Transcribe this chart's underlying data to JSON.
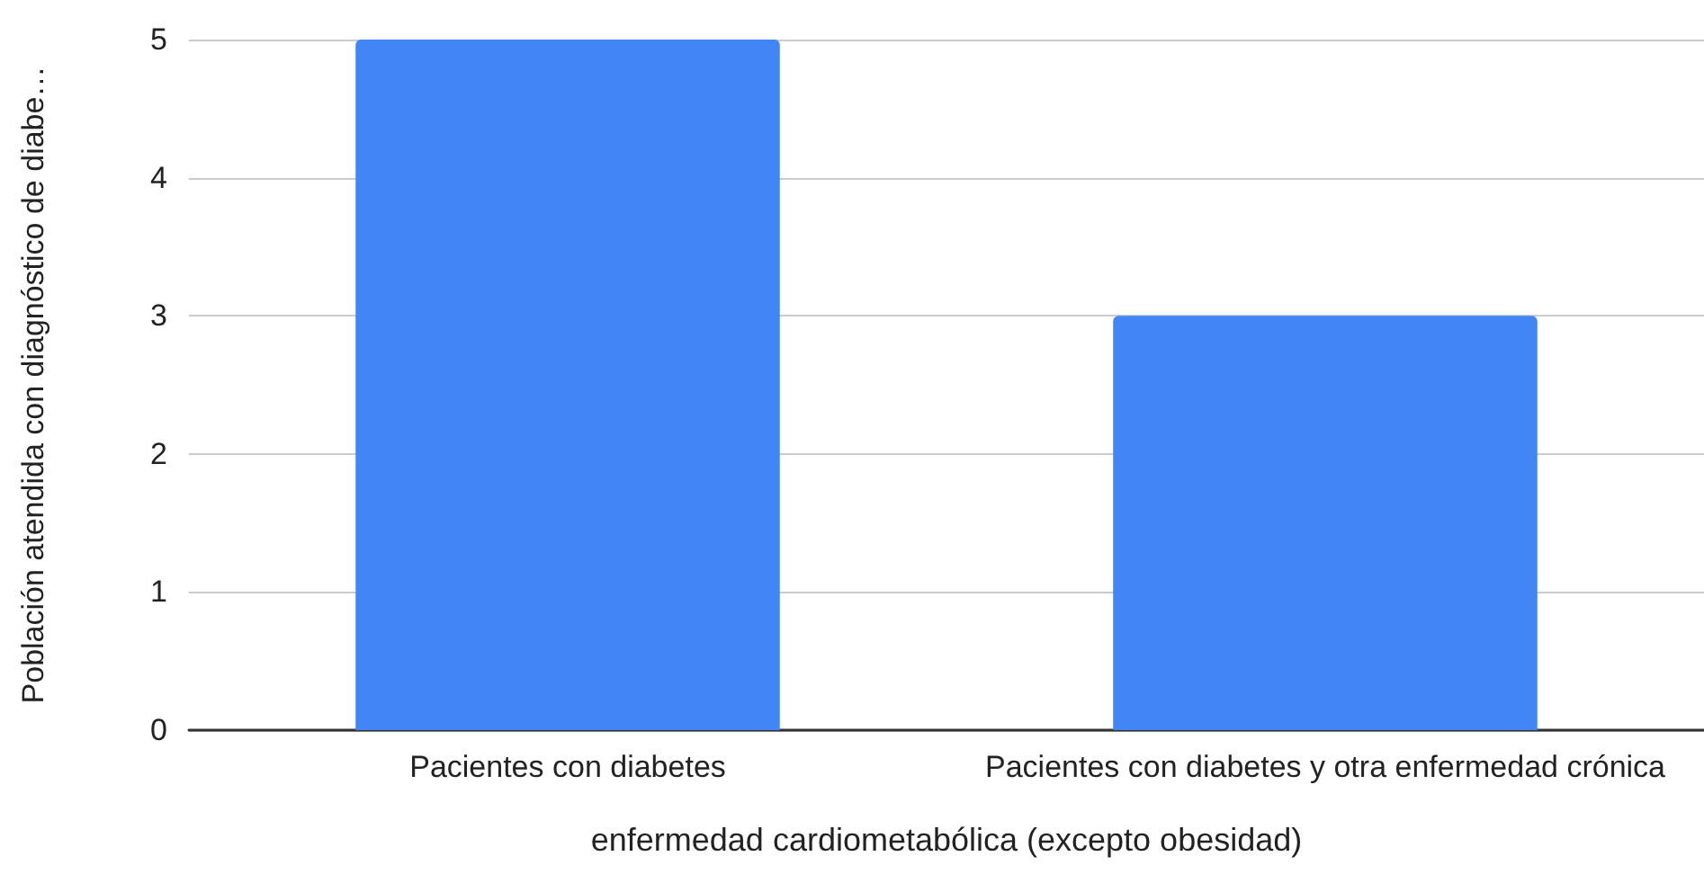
{
  "chart_data": {
    "type": "bar",
    "xlabel": "enfermedad cardiometabólica (excepto obesidad)",
    "ylabel": "Población atendida con diagnóstico de diabe…",
    "categories": [
      "Pacientes con diabetes",
      "Pacientes con diabetes y otra enfermedad crónica"
    ],
    "values": [
      5,
      3
    ],
    "color": "#4285f4",
    "ylim": [
      0,
      5
    ],
    "yticks": [
      0,
      1,
      2,
      3,
      4,
      5
    ],
    "grid": "y"
  }
}
